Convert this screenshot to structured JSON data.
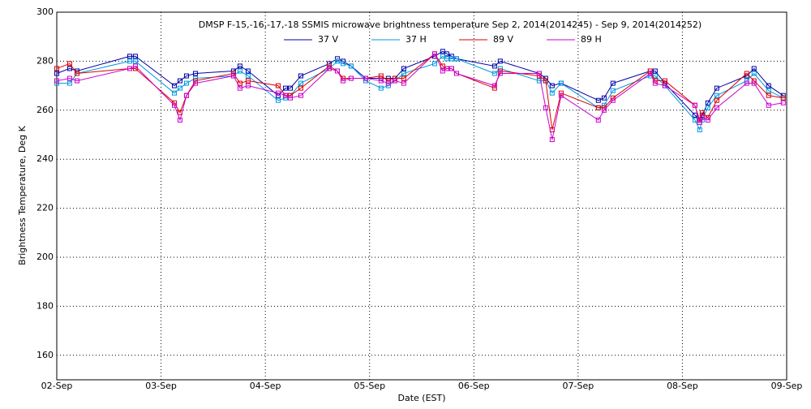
{
  "chart_data": {
    "type": "line",
    "title": "DMSP F-15,-16,-17,-18 SSMIS microwave brightness temperature Sep  2, 2014(2014245) - Sep  9, 2014(2014252)",
    "xlabel": "Date (EST)",
    "ylabel": "Brightness Temperature, Deg K",
    "x": [
      0,
      0.124,
      0.194,
      0.7,
      0.754,
      1.128,
      1.182,
      1.244,
      1.33,
      1.695,
      1.757,
      1.835,
      2.123,
      2.193,
      2.24,
      2.341,
      2.613,
      2.691,
      2.745,
      2.823,
      2.963,
      3.11,
      3.18,
      3.243,
      3.328,
      3.624,
      3.701,
      3.74,
      3.787,
      3.834,
      4.199,
      4.253,
      4.627,
      4.689,
      4.751,
      4.837,
      5.194,
      5.249,
      5.334,
      5.692,
      5.739,
      5.832,
      6.12,
      6.166,
      6.19,
      6.244,
      6.33,
      6.617,
      6.687,
      6.827,
      6.967
    ],
    "series": [
      {
        "name": "37 V",
        "color": "#0000aa",
        "values": [
          275,
          277,
          276,
          282,
          282,
          270,
          272,
          274,
          275,
          276,
          278,
          276,
          266,
          269,
          269,
          274,
          279,
          281,
          280,
          278,
          273,
          273,
          273,
          273,
          277,
          282,
          284,
          283,
          282,
          281,
          278,
          280,
          275,
          273,
          270,
          271,
          264,
          265,
          271,
          276,
          276,
          271,
          258,
          256,
          258,
          263,
          269,
          274,
          277,
          270,
          266
        ]
      },
      {
        "name": "37 H",
        "color": "#0099dd",
        "values": [
          271,
          271,
          275,
          280,
          280,
          267,
          269,
          271,
          273,
          274,
          276,
          274,
          264,
          265,
          266,
          271,
          277,
          280,
          279,
          278,
          272,
          269,
          270,
          272,
          275,
          279,
          282,
          281,
          281,
          281,
          275,
          277,
          272,
          272,
          267,
          271,
          261,
          262,
          268,
          274,
          274,
          270,
          256,
          252,
          256,
          261,
          266,
          272,
          275,
          268,
          265
        ]
      },
      {
        "name": "89 V",
        "color": "#dd0000",
        "values": [
          277,
          279,
          275,
          277,
          277,
          263,
          259,
          266,
          272,
          275,
          271,
          272,
          270,
          266,
          266,
          269,
          278,
          276,
          273,
          273,
          273,
          274,
          272,
          273,
          273,
          283,
          278,
          277,
          277,
          275,
          269,
          276,
          274,
          272,
          252,
          267,
          261,
          261,
          265,
          276,
          272,
          272,
          262,
          256,
          259,
          257,
          264,
          275,
          272,
          266,
          265
        ]
      },
      {
        "name": "89 H",
        "color": "#cc00cc",
        "values": [
          272,
          273,
          272,
          277,
          278,
          262,
          256,
          266,
          271,
          274,
          269,
          270,
          267,
          266,
          265,
          266,
          277,
          276,
          272,
          273,
          273,
          272,
          271,
          272,
          271,
          283,
          276,
          277,
          277,
          275,
          270,
          275,
          275,
          261,
          248,
          266,
          256,
          260,
          264,
          275,
          271,
          270,
          262,
          255,
          257,
          256,
          261,
          271,
          271,
          262,
          263
        ]
      }
    ],
    "xlim": [
      0,
      7
    ],
    "xticks": [
      {
        "value": 0,
        "label": "02-Sep"
      },
      {
        "value": 1,
        "label": "03-Sep"
      },
      {
        "value": 2,
        "label": "04-Sep"
      },
      {
        "value": 3,
        "label": "05-Sep"
      },
      {
        "value": 4,
        "label": "06-Sep"
      },
      {
        "value": 5,
        "label": "07-Sep"
      },
      {
        "value": 6,
        "label": "08-Sep"
      },
      {
        "value": 7,
        "label": "09-Sep"
      }
    ],
    "ylim": [
      150,
      300
    ],
    "yticks": [
      160,
      180,
      200,
      220,
      240,
      260,
      280,
      300
    ],
    "grid": true
  }
}
